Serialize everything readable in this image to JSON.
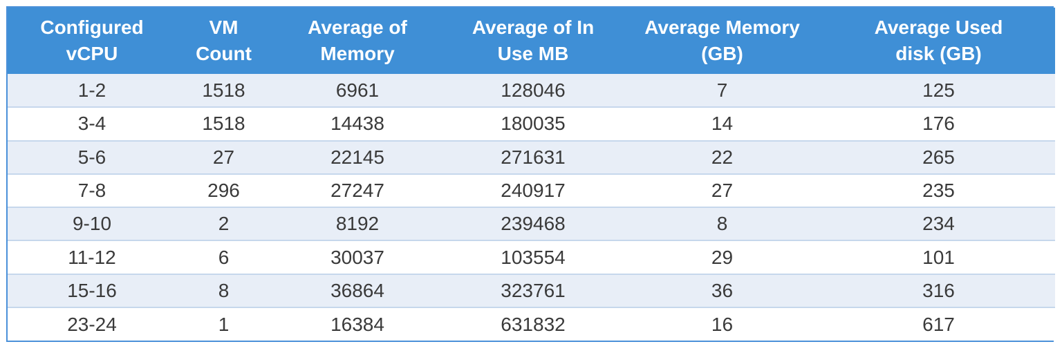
{
  "table": {
    "headers": [
      "Configured\nvCPU",
      "VM\nCount",
      "Average of\nMemory",
      "Average of In\nUse MB",
      "Average Memory\n(GB)",
      "Average Used\ndisk (GB)"
    ],
    "rows": [
      [
        "1-2",
        "1518",
        "6961",
        "128046",
        "7",
        "125"
      ],
      [
        "3-4",
        "1518",
        "14438",
        "180035",
        "14",
        "176"
      ],
      [
        "5-6",
        "27",
        "22145",
        "271631",
        "22",
        "265"
      ],
      [
        "7-8",
        "296",
        "27247",
        "240917",
        "27",
        "235"
      ],
      [
        "9-10",
        "2",
        "8192",
        "239468",
        "8",
        "234"
      ],
      [
        "11-12",
        "6",
        "30037",
        "103554",
        "29",
        "101"
      ],
      [
        "15-16",
        "8",
        "36864",
        "323761",
        "36",
        "316"
      ],
      [
        "23-24",
        "1",
        "16384",
        "631832",
        "16",
        "617"
      ]
    ]
  },
  "colors": {
    "header_bg": "#3f8fd6",
    "header_text": "#ffffff",
    "row_alt_bg": "#e8eef7",
    "row_bg": "#ffffff",
    "border": "#4a90d9",
    "cell_text": "#3a3a3a"
  }
}
